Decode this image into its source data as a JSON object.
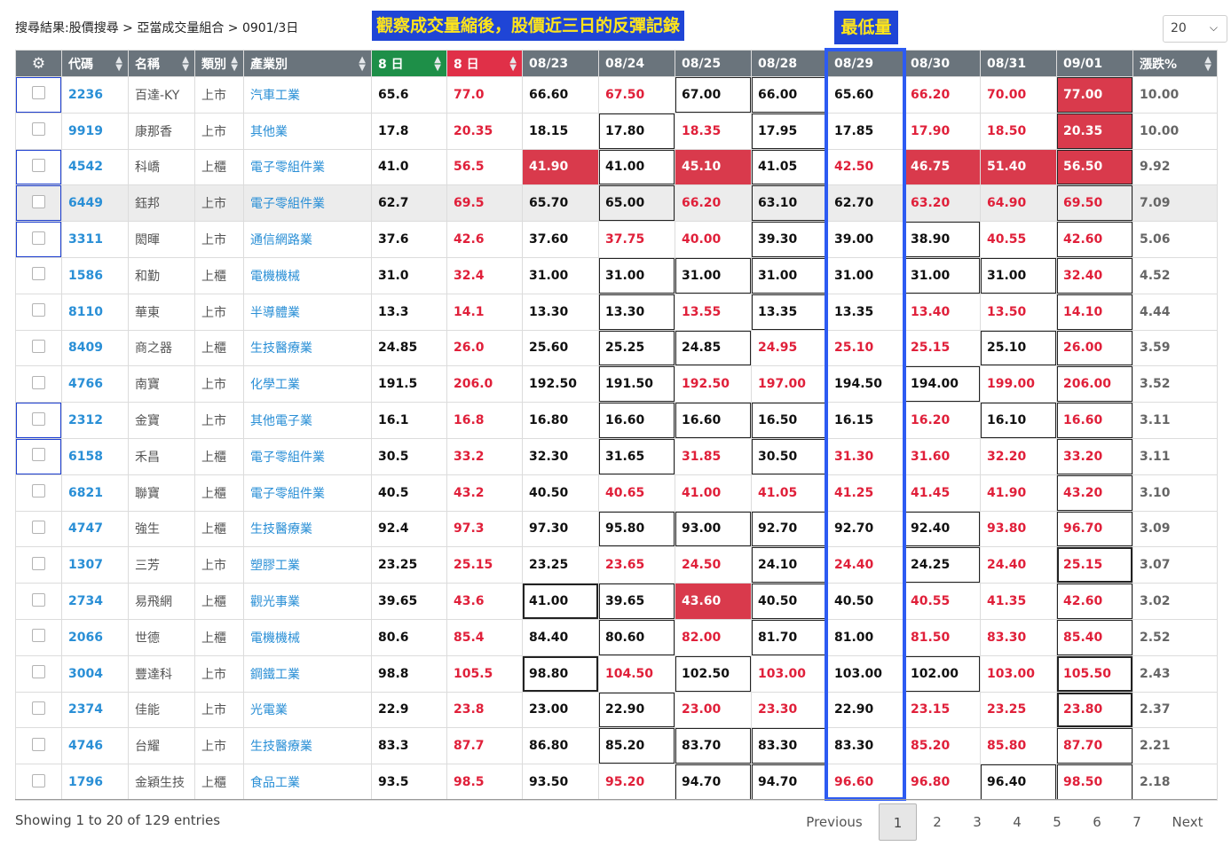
{
  "breadcrumb": "搜尋結果:股價搜尋 > 亞當成交量組合 > 0901/3日",
  "banner_text": "觀察成交量縮後，股價近三日的反彈記錄",
  "banner_min": "最低量",
  "page_size": "20",
  "icons": {
    "settings": "gear-icon",
    "sort": "sort-arrows-icon",
    "dropdown": "chevron-down-icon"
  },
  "colors": {
    "header": "#6a747c",
    "green_header": "#1e8f48",
    "red_header": "#e03048",
    "highlight_red": "#d93a4c",
    "frame_blue": "#2d5bf2",
    "banner_blue": "#1f45d6",
    "banner_text": "#ffe51a"
  },
  "columns": [
    "⚙",
    "代碼",
    "名稱",
    "類別",
    "產業別",
    "8 日",
    "8 日",
    "08/23",
    "08/24",
    "08/25",
    "08/28",
    "08/29",
    "08/30",
    "08/31",
    "09/01",
    "漲跌%"
  ],
  "rows": [
    {
      "code": "2236",
      "name": "百達-KY",
      "market": "上市",
      "industry": "汽車工業",
      "low": "65.6",
      "high": "77.0",
      "d0823": "66.60",
      "d0824": "67.50",
      "d0825": "67.00",
      "d0828": "66.00",
      "d0829": "65.60",
      "d0830": "66.20",
      "d0831": "70.00",
      "d0901": "77.00",
      "pct": "10.00"
    },
    {
      "code": "9919",
      "name": "康那香",
      "market": "上市",
      "industry": "其他業",
      "low": "17.8",
      "high": "20.35",
      "d0823": "18.15",
      "d0824": "17.80",
      "d0825": "18.35",
      "d0828": "17.95",
      "d0829": "17.85",
      "d0830": "17.90",
      "d0831": "18.50",
      "d0901": "20.35",
      "pct": "10.00"
    },
    {
      "code": "4542",
      "name": "科嶠",
      "market": "上櫃",
      "industry": "電子零組件業",
      "low": "41.0",
      "high": "56.5",
      "d0823": "41.90",
      "d0824": "41.00",
      "d0825": "45.10",
      "d0828": "41.05",
      "d0829": "42.50",
      "d0830": "46.75",
      "d0831": "51.40",
      "d0901": "56.50",
      "pct": "9.92"
    },
    {
      "code": "6449",
      "name": "鈺邦",
      "market": "上市",
      "industry": "電子零組件業",
      "low": "62.7",
      "high": "69.5",
      "d0823": "65.70",
      "d0824": "65.00",
      "d0825": "66.20",
      "d0828": "63.10",
      "d0829": "62.70",
      "d0830": "63.20",
      "d0831": "64.90",
      "d0901": "69.50",
      "pct": "7.09"
    },
    {
      "code": "3311",
      "name": "閎暉",
      "market": "上市",
      "industry": "通信網路業",
      "low": "37.6",
      "high": "42.6",
      "d0823": "37.60",
      "d0824": "37.75",
      "d0825": "40.00",
      "d0828": "39.30",
      "d0829": "39.00",
      "d0830": "38.90",
      "d0831": "40.55",
      "d0901": "42.60",
      "pct": "5.06"
    },
    {
      "code": "1586",
      "name": "和勤",
      "market": "上櫃",
      "industry": "電機機械",
      "low": "31.0",
      "high": "32.4",
      "d0823": "31.00",
      "d0824": "31.00",
      "d0825": "31.00",
      "d0828": "31.00",
      "d0829": "31.00",
      "d0830": "31.00",
      "d0831": "31.00",
      "d0901": "32.40",
      "pct": "4.52"
    },
    {
      "code": "8110",
      "name": "華東",
      "market": "上市",
      "industry": "半導體業",
      "low": "13.3",
      "high": "14.1",
      "d0823": "13.30",
      "d0824": "13.30",
      "d0825": "13.55",
      "d0828": "13.35",
      "d0829": "13.35",
      "d0830": "13.40",
      "d0831": "13.50",
      "d0901": "14.10",
      "pct": "4.44"
    },
    {
      "code": "8409",
      "name": "商之器",
      "market": "上櫃",
      "industry": "生技醫療業",
      "low": "24.85",
      "high": "26.0",
      "d0823": "25.60",
      "d0824": "25.25",
      "d0825": "24.85",
      "d0828": "24.95",
      "d0829": "25.10",
      "d0830": "25.15",
      "d0831": "25.10",
      "d0901": "26.00",
      "pct": "3.59"
    },
    {
      "code": "4766",
      "name": "南寶",
      "market": "上市",
      "industry": "化學工業",
      "low": "191.5",
      "high": "206.0",
      "d0823": "192.50",
      "d0824": "191.50",
      "d0825": "192.50",
      "d0828": "197.00",
      "d0829": "194.50",
      "d0830": "194.00",
      "d0831": "199.00",
      "d0901": "206.00",
      "pct": "3.52"
    },
    {
      "code": "2312",
      "name": "金寶",
      "market": "上市",
      "industry": "其他電子業",
      "low": "16.1",
      "high": "16.8",
      "d0823": "16.80",
      "d0824": "16.60",
      "d0825": "16.60",
      "d0828": "16.50",
      "d0829": "16.15",
      "d0830": "16.20",
      "d0831": "16.10",
      "d0901": "16.60",
      "pct": "3.11"
    },
    {
      "code": "6158",
      "name": "禾昌",
      "market": "上櫃",
      "industry": "電子零組件業",
      "low": "30.5",
      "high": "33.2",
      "d0823": "32.30",
      "d0824": "31.65",
      "d0825": "31.85",
      "d0828": "30.50",
      "d0829": "31.30",
      "d0830": "31.60",
      "d0831": "32.20",
      "d0901": "33.20",
      "pct": "3.11"
    },
    {
      "code": "6821",
      "name": "聯寶",
      "market": "上櫃",
      "industry": "電子零組件業",
      "low": "40.5",
      "high": "43.2",
      "d0823": "40.50",
      "d0824": "40.65",
      "d0825": "41.00",
      "d0828": "41.05",
      "d0829": "41.25",
      "d0830": "41.45",
      "d0831": "41.90",
      "d0901": "43.20",
      "pct": "3.10"
    },
    {
      "code": "4747",
      "name": "強生",
      "market": "上櫃",
      "industry": "生技醫療業",
      "low": "92.4",
      "high": "97.3",
      "d0823": "97.30",
      "d0824": "95.80",
      "d0825": "93.00",
      "d0828": "92.70",
      "d0829": "92.70",
      "d0830": "92.40",
      "d0831": "93.80",
      "d0901": "96.70",
      "pct": "3.09"
    },
    {
      "code": "1307",
      "name": "三芳",
      "market": "上市",
      "industry": "塑膠工業",
      "low": "23.25",
      "high": "25.15",
      "d0823": "23.25",
      "d0824": "23.65",
      "d0825": "24.50",
      "d0828": "24.10",
      "d0829": "24.40",
      "d0830": "24.25",
      "d0831": "24.40",
      "d0901": "25.15",
      "pct": "3.07"
    },
    {
      "code": "2734",
      "name": "易飛網",
      "market": "上櫃",
      "industry": "觀光事業",
      "low": "39.65",
      "high": "43.6",
      "d0823": "41.00",
      "d0824": "39.65",
      "d0825": "43.60",
      "d0828": "40.50",
      "d0829": "40.50",
      "d0830": "40.55",
      "d0831": "41.35",
      "d0901": "42.60",
      "pct": "3.02"
    },
    {
      "code": "2066",
      "name": "世德",
      "market": "上櫃",
      "industry": "電機機械",
      "low": "80.6",
      "high": "85.4",
      "d0823": "84.40",
      "d0824": "80.60",
      "d0825": "82.00",
      "d0828": "81.70",
      "d0829": "81.00",
      "d0830": "81.50",
      "d0831": "83.30",
      "d0901": "85.40",
      "pct": "2.52"
    },
    {
      "code": "3004",
      "name": "豐達科",
      "market": "上市",
      "industry": "鋼鐵工業",
      "low": "98.8",
      "high": "105.5",
      "d0823": "98.80",
      "d0824": "104.50",
      "d0825": "102.50",
      "d0828": "103.00",
      "d0829": "103.00",
      "d0830": "102.00",
      "d0831": "103.00",
      "d0901": "105.50",
      "pct": "2.43"
    },
    {
      "code": "2374",
      "name": "佳能",
      "market": "上市",
      "industry": "光電業",
      "low": "22.9",
      "high": "23.8",
      "d0823": "23.00",
      "d0824": "22.90",
      "d0825": "23.00",
      "d0828": "23.30",
      "d0829": "22.90",
      "d0830": "23.15",
      "d0831": "23.25",
      "d0901": "23.80",
      "pct": "2.37"
    },
    {
      "code": "4746",
      "name": "台耀",
      "market": "上市",
      "industry": "生技醫療業",
      "low": "83.3",
      "high": "87.7",
      "d0823": "86.80",
      "d0824": "85.20",
      "d0825": "83.70",
      "d0828": "83.30",
      "d0829": "83.30",
      "d0830": "85.20",
      "d0831": "85.80",
      "d0901": "87.70",
      "pct": "2.21"
    },
    {
      "code": "1796",
      "name": "金穎生技",
      "market": "上櫃",
      "industry": "食品工業",
      "low": "93.5",
      "high": "98.5",
      "d0823": "93.50",
      "d0824": "95.20",
      "d0825": "94.70",
      "d0828": "94.70",
      "d0829": "96.60",
      "d0830": "96.80",
      "d0831": "96.40",
      "d0901": "98.50",
      "pct": "2.18"
    }
  ],
  "footer": {
    "info": "Showing 1 to 20 of 129 entries",
    "previous": "Previous",
    "pages": [
      "1",
      "2",
      "3",
      "4",
      "5",
      "6",
      "7"
    ],
    "next": "Next"
  }
}
